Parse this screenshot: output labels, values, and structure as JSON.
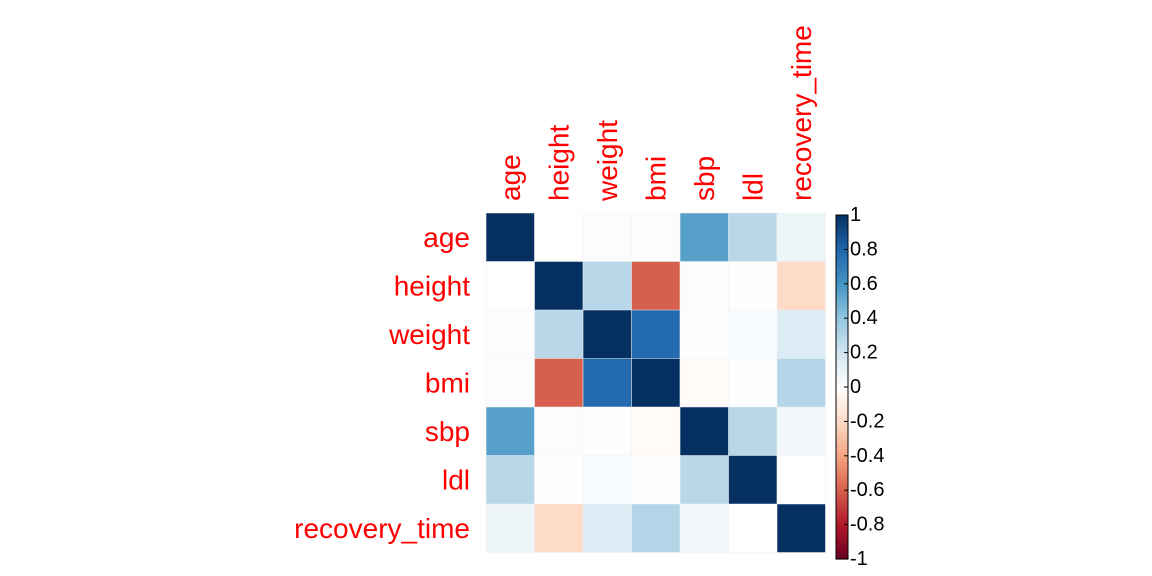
{
  "chart_data": {
    "type": "heatmap",
    "title": "",
    "variables": [
      "age",
      "height",
      "weight",
      "bmi",
      "sbp",
      "ldl",
      "recovery_time"
    ],
    "matrix": [
      [
        1.0,
        0.0,
        0.02,
        0.02,
        0.55,
        0.28,
        0.08
      ],
      [
        0.0,
        1.0,
        0.28,
        -0.6,
        0.02,
        0.01,
        -0.2
      ],
      [
        0.02,
        0.28,
        1.0,
        0.78,
        -0.01,
        0.03,
        0.15
      ],
      [
        0.02,
        -0.6,
        0.78,
        1.0,
        -0.02,
        0.01,
        0.3
      ],
      [
        0.55,
        0.02,
        -0.01,
        -0.02,
        1.0,
        0.28,
        0.06
      ],
      [
        0.28,
        0.01,
        0.03,
        0.01,
        0.28,
        1.0,
        0.0
      ],
      [
        0.08,
        -0.2,
        0.15,
        0.3,
        0.06,
        0.0,
        1.0
      ]
    ],
    "colorbar": {
      "range": [
        -1,
        1
      ],
      "ticks": [
        1,
        0.8,
        0.6,
        0.4,
        0.2,
        0,
        -0.2,
        -0.4,
        -0.6,
        -0.8,
        -1
      ],
      "tick_labels": [
        "1",
        "0.8",
        "0.6",
        "0.4",
        "0.2",
        "0",
        "-0.2",
        "-0.4",
        "-0.6",
        "-0.8",
        "-1"
      ]
    },
    "colors": {
      "label": "#ff0000",
      "palette": [
        "#67001f",
        "#b2182b",
        "#d6604d",
        "#f4a582",
        "#fddbc7",
        "#ffffff",
        "#d1e5f0",
        "#92c5de",
        "#4393c3",
        "#2166ac",
        "#053061"
      ]
    }
  }
}
